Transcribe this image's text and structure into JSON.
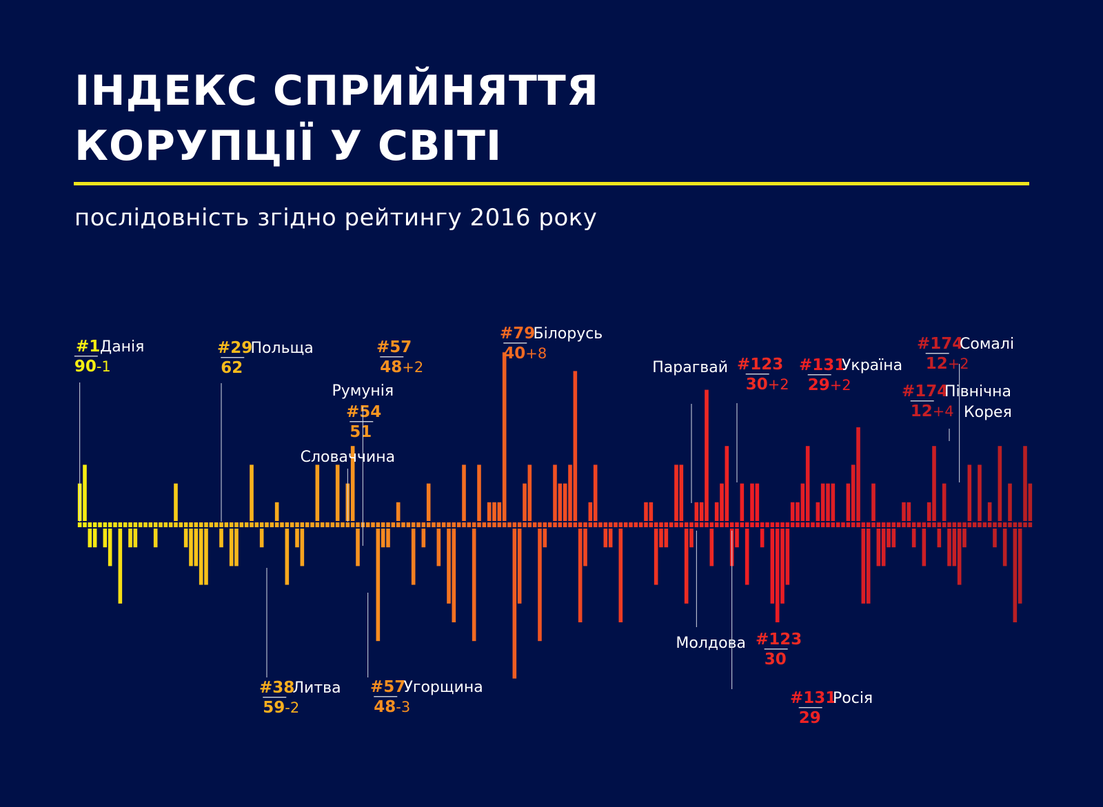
{
  "title_line1": "ІНДЕКС СПРИЙНЯТТЯ",
  "title_line2": "КОРУПЦІЇ У СВІТІ",
  "subtitle": "послідовність згідно рейтингу 2016 року",
  "colors": {
    "background": "#001048",
    "accent_rule": "#f2e51c",
    "text": "#ffffff",
    "gradient": [
      "#f6ee12",
      "#f8bd1c",
      "#f79520",
      "#f26522",
      "#ee3b23",
      "#ed1c24",
      "#d21f26",
      "#b51f24"
    ]
  },
  "chart_data": {
    "type": "bar",
    "description_of_encoding": "",
    "n": 176,
    "values": [
      2,
      3,
      -1,
      -1,
      0,
      -1,
      -2,
      0,
      -4,
      0,
      -1,
      -1,
      0,
      0,
      0,
      -1,
      0,
      0,
      0,
      2,
      0,
      -1,
      -2,
      -2,
      -3,
      -3,
      0,
      0,
      -1,
      0,
      -2,
      -2,
      0,
      0,
      3,
      0,
      -1,
      0,
      0,
      1,
      0,
      -3,
      0,
      -1,
      -2,
      0,
      0,
      3,
      0,
      0,
      0,
      3,
      0,
      2,
      4,
      -2,
      0,
      0,
      0,
      -6,
      -1,
      -1,
      0,
      1,
      0,
      0,
      -3,
      0,
      -1,
      2,
      0,
      -2,
      0,
      -4,
      -5,
      0,
      3,
      0,
      -6,
      3,
      0,
      1,
      1,
      1,
      9,
      0,
      -8,
      -4,
      2,
      3,
      0,
      -6,
      -1,
      0,
      3,
      2,
      2,
      3,
      8,
      -5,
      -2,
      1,
      3,
      0,
      -1,
      -1,
      0,
      -5,
      0,
      0,
      0,
      0,
      1,
      1,
      -3,
      -1,
      -1,
      0,
      3,
      3,
      -4,
      -1,
      1,
      1,
      7,
      -2,
      1,
      2,
      4,
      -2,
      -1,
      2,
      -3,
      2,
      2,
      -1,
      0,
      -4,
      -5,
      -4,
      -3,
      1,
      1,
      2,
      4,
      0,
      1,
      2,
      2,
      2,
      0,
      0,
      2,
      3,
      5,
      -4,
      -4,
      2,
      -2,
      -2,
      -1,
      -1,
      0,
      1,
      1,
      -1,
      0,
      -2,
      1,
      4,
      -1,
      2,
      -2,
      -2,
      -3,
      -1,
      3,
      0,
      3,
      0,
      1,
      -1,
      4,
      -2,
      2,
      -5,
      -4,
      4,
      2
    ],
    "annotations": [
      {
        "country": "Данія",
        "rank": "#1",
        "score": "90",
        "change": "-1"
      },
      {
        "country": "Польща",
        "rank": "#29",
        "score": "62",
        "change": ""
      },
      {
        "country": "Литва",
        "rank": "#38",
        "score": "59",
        "change": "-2"
      },
      {
        "country": "Словаччина",
        "rank": "#54",
        "score": "51",
        "change": ""
      },
      {
        "country": "Румунія",
        "rank": "#57",
        "score": "48",
        "change": "+2"
      },
      {
        "country": "Угорщина",
        "rank": "#57",
        "score": "48",
        "change": "-3"
      },
      {
        "country": "Білорусь",
        "rank": "#79",
        "score": "40",
        "change": "+8"
      },
      {
        "country": "Парагвай",
        "rank": "#123",
        "score": "30",
        "change": "+2"
      },
      {
        "country": "Молдова",
        "rank": "#123",
        "score": "30",
        "change": ""
      },
      {
        "country": "Україна",
        "rank": "#131",
        "score": "29",
        "change": "+2"
      },
      {
        "country": "Росія",
        "rank": "#131",
        "score": "29",
        "change": ""
      },
      {
        "country": "Сомалі",
        "rank": "#174",
        "score": "12",
        "change": "+2"
      },
      {
        "country_line1": "Північна",
        "country_line2": "Корея",
        "rank": "#174",
        "score": "12",
        "change": "+4"
      }
    ]
  }
}
